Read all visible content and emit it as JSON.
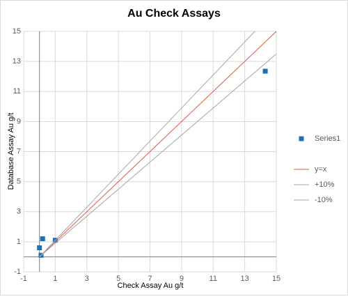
{
  "chart_data": {
    "type": "scatter",
    "title": "Au Check Assays",
    "x_label": "Check Assay Au g/t",
    "y_label": "Database Assay Au g/t",
    "xlim": [
      -1,
      15
    ],
    "ylim": [
      -1,
      15
    ],
    "xticks": [
      -1,
      1,
      3,
      5,
      7,
      9,
      11,
      13,
      15
    ],
    "yticks": [
      -1,
      1,
      3,
      5,
      7,
      9,
      11,
      13,
      15
    ],
    "grid": true,
    "legend": "right",
    "series": [
      {
        "name": "Series1",
        "kind": "scatter",
        "color": "#1f6fb8",
        "x": [
          0,
          0.1,
          0.2,
          1.0,
          14.3
        ],
        "values": [
          0.6,
          0.1,
          1.2,
          1.1,
          12.35
        ]
      },
      {
        "name": "y=x",
        "kind": "line",
        "color": "#e0563f",
        "x": [
          0,
          15
        ],
        "values": [
          0,
          15
        ]
      },
      {
        "name": "+10%",
        "kind": "line",
        "color": "#a6a6a6",
        "x": [
          0,
          13.64
        ],
        "values": [
          0,
          15
        ]
      },
      {
        "name": "-10%",
        "kind": "line",
        "color": "#a6a6a6",
        "x": [
          0,
          15
        ],
        "values": [
          0,
          13.5
        ]
      }
    ]
  }
}
